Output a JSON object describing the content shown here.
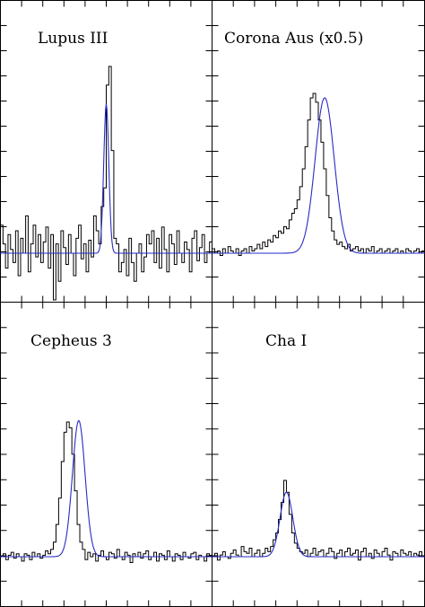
{
  "chart_data": [
    {
      "type": "line",
      "title": "Lupus III",
      "xlabel": "",
      "ylabel": "",
      "xlim": [
        0,
        1
      ],
      "ylim": [
        -0.3,
        1.0
      ],
      "x_ticks": 10,
      "y_ticks": 12,
      "grid": false,
      "series": [
        {
          "style": "histogram",
          "color": "#000000",
          "values": [
            0.15,
            0.05,
            -0.08,
            0.1,
            0.02,
            -0.05,
            0.12,
            -0.12,
            0.08,
            0.0,
            0.2,
            -0.1,
            0.05,
            0.15,
            -0.02,
            0.1,
            -0.05,
            0.06,
            0.14,
            -0.08,
            0.1,
            -0.25,
            0.05,
            -0.15,
            0.12,
            0.03,
            -0.06,
            0.1,
            0.0,
            -0.12,
            0.08,
            0.15,
            -0.03,
            0.05,
            -0.1,
            0.07,
            -0.02,
            0.2,
            0.12,
            0.05,
            0.25,
            0.35,
            0.9,
            1.0,
            0.55,
            0.08,
            0.05,
            -0.1,
            -0.05,
            0.02,
            -0.12,
            0.08,
            -0.05,
            -0.15,
            0.0,
            0.05,
            -0.1,
            -0.02,
            0.1,
            0.05,
            0.12,
            -0.05,
            0.08,
            -0.08,
            0.14,
            0.02,
            -0.1,
            0.1,
            0.05,
            -0.06,
            0.12,
            0.0,
            -0.05,
            0.06,
            0.02,
            -0.1,
            0.08,
            0.12,
            -0.04,
            0.03,
            0.1,
            -0.05,
            0.0,
            0.06
          ]
        },
        {
          "style": "gaussian",
          "color": "#2a2ac8",
          "baseline": 0.0,
          "amplitude": 0.8,
          "center": 0.5,
          "sigma": 0.012
        }
      ]
    },
    {
      "type": "line",
      "title": "Corona Aus (x0.5)",
      "xlabel": "",
      "ylabel": "",
      "xlim": [
        0,
        1
      ],
      "ylim": [
        -0.3,
        1.0
      ],
      "x_ticks": 10,
      "y_ticks": 12,
      "grid": false,
      "series": [
        {
          "style": "histogram",
          "color": "#000000",
          "values": [
            0.02,
            0.0,
            0.01,
            -0.01,
            0.02,
            0.0,
            0.03,
            0.01,
            0.0,
            0.02,
            -0.01,
            0.01,
            0.02,
            0.0,
            0.03,
            0.01,
            0.02,
            0.04,
            0.02,
            0.05,
            0.03,
            0.06,
            0.05,
            0.08,
            0.07,
            0.1,
            0.09,
            0.12,
            0.11,
            0.15,
            0.18,
            0.2,
            0.24,
            0.3,
            0.38,
            0.48,
            0.6,
            0.7,
            0.72,
            0.68,
            0.6,
            0.5,
            0.38,
            0.26,
            0.16,
            0.1,
            0.06,
            0.04,
            0.05,
            0.03,
            0.02,
            0.04,
            0.01,
            0.02,
            0.03,
            0.01,
            0.02,
            0.0,
            0.02,
            0.01,
            0.03,
            0.0,
            0.01,
            0.02,
            0.0,
            0.01,
            0.02,
            0.0,
            0.01,
            0.02,
            0.0,
            0.01,
            0.0,
            0.02,
            0.01,
            0.0,
            0.01,
            0.02,
            0.0,
            0.01
          ]
        },
        {
          "style": "gaussian",
          "color": "#2a2ac8",
          "baseline": 0.0,
          "amplitude": 0.7,
          "center": 0.53,
          "sigma": 0.045
        }
      ]
    },
    {
      "type": "line",
      "title": "Cepheus 3",
      "xlabel": "",
      "ylabel": "",
      "xlim": [
        0,
        1
      ],
      "ylim": [
        -0.1,
        1.2
      ],
      "x_ticks": 10,
      "y_ticks": 12,
      "grid": false,
      "series": [
        {
          "style": "histogram",
          "color": "#000000",
          "values": [
            0.0,
            0.02,
            -0.02,
            0.01,
            0.03,
            -0.01,
            0.02,
            0.0,
            -0.03,
            0.02,
            0.01,
            -0.02,
            0.03,
            0.0,
            0.02,
            -0.01,
            0.01,
            0.04,
            0.02,
            0.05,
            0.1,
            0.22,
            0.4,
            0.65,
            0.85,
            0.92,
            0.88,
            0.7,
            0.45,
            0.22,
            0.1,
            0.05,
            -0.02,
            0.03,
            0.0,
            0.02,
            -0.03,
            0.01,
            0.04,
            0.0,
            -0.02,
            0.03,
            0.02,
            -0.01,
            0.05,
            0.0,
            -0.02,
            0.03,
            0.01,
            -0.04,
            0.02,
            0.0,
            0.03,
            -0.01,
            0.02,
            0.04,
            -0.02,
            0.0,
            0.03,
            -0.03,
            0.02,
            0.01,
            -0.02,
            0.04,
            0.0,
            -0.03,
            0.02,
            0.01,
            -0.02,
            0.03,
            0.0,
            -0.01,
            0.02,
            0.03,
            -0.02,
            0.01,
            0.0,
            -0.03,
            0.02,
            0.01
          ]
        },
        {
          "style": "gaussian",
          "color": "#2a2ac8",
          "baseline": 0.0,
          "amplitude": 0.93,
          "center": 0.37,
          "sigma": 0.03
        }
      ]
    },
    {
      "type": "line",
      "title": "Cha I",
      "xlabel": "",
      "ylabel": "",
      "xlim": [
        0,
        1
      ],
      "ylim": [
        -0.1,
        1.2
      ],
      "x_ticks": 10,
      "y_ticks": 12,
      "grid": false,
      "series": [
        {
          "style": "histogram",
          "color": "#000000",
          "values": [
            0.0,
            0.02,
            -0.02,
            0.01,
            0.03,
            0.0,
            -0.01,
            0.02,
            0.04,
            0.01,
            0.0,
            0.06,
            0.03,
            0.02,
            0.05,
            0.0,
            0.02,
            0.04,
            0.0,
            0.02,
            0.05,
            0.03,
            0.06,
            0.1,
            0.14,
            0.22,
            0.32,
            0.45,
            0.38,
            0.25,
            0.14,
            0.08,
            0.05,
            0.03,
            0.02,
            0.04,
            0.0,
            0.02,
            0.05,
            0.01,
            0.03,
            0.04,
            0.0,
            0.02,
            0.05,
            0.03,
            -0.01,
            0.02,
            0.04,
            0.0,
            0.03,
            0.05,
            0.01,
            0.02,
            0.04,
            -0.02,
            0.03,
            0.05,
            0.0,
            0.02,
            -0.01,
            0.04,
            0.02,
            0.0,
            0.03,
            0.05,
            0.01,
            -0.02,
            0.03,
            0.02,
            0.0,
            0.04,
            0.02,
            0.01,
            0.03,
            0.0,
            0.02,
            0.01,
            0.03,
            0.0
          ]
        },
        {
          "style": "gaussian",
          "color": "#2a2ac8",
          "baseline": 0.0,
          "amplitude": 0.38,
          "center": 0.35,
          "sigma": 0.03
        }
      ]
    }
  ]
}
